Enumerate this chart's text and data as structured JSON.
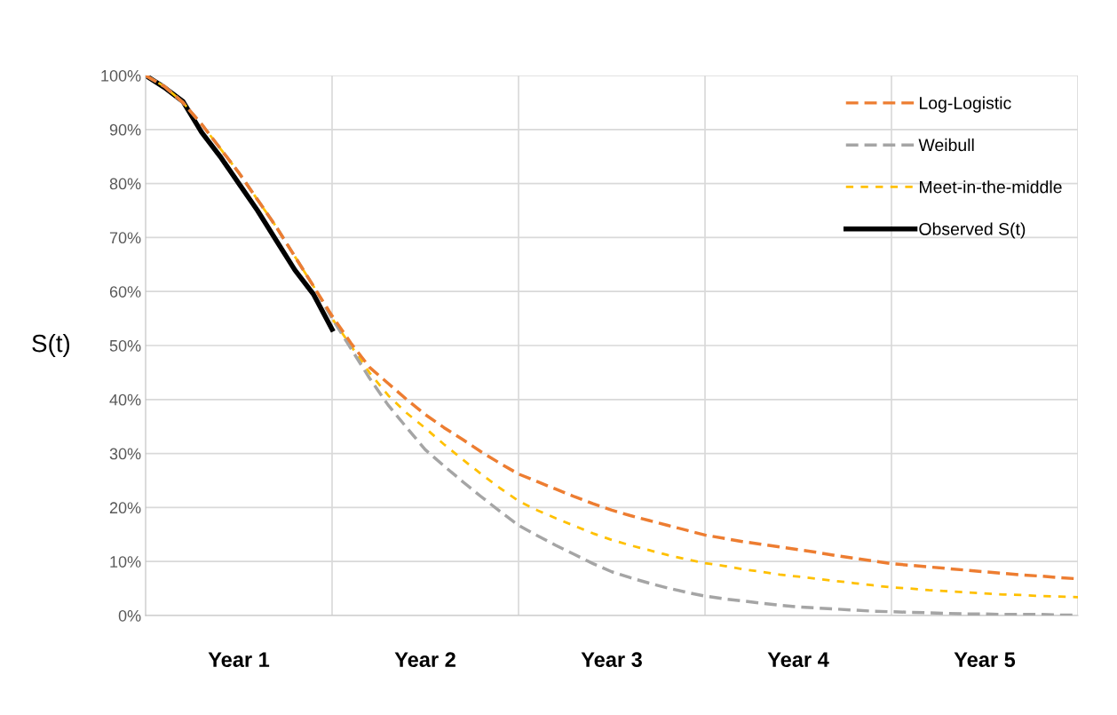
{
  "chart_data": {
    "type": "line",
    "ylabel": "S(t)",
    "categories": [
      null,
      null,
      null,
      null,
      null,
      null,
      null,
      null,
      null,
      null,
      null,
      null,
      null,
      null,
      null,
      null,
      null,
      null,
      null,
      null,
      null,
      null,
      null,
      null,
      null,
      null,
      null,
      null,
      null,
      null,
      null,
      null,
      null,
      null,
      null,
      null,
      null,
      null,
      null,
      null,
      null,
      null,
      null,
      null,
      null,
      null,
      null,
      null,
      null,
      null,
      null
    ],
    "annotations": [
      "Year 1",
      "Year 2",
      "Year 3",
      "Year 4",
      "Year 5"
    ],
    "ylim": [
      0,
      100
    ],
    "yticks": [
      {
        "value": 0,
        "label": "0%"
      },
      {
        "value": 10,
        "label": "10%"
      },
      {
        "value": 20,
        "label": "20%"
      },
      {
        "value": 30,
        "label": "30%"
      },
      {
        "value": 40,
        "label": "40%"
      },
      {
        "value": 50,
        "label": "50%"
      },
      {
        "value": 60,
        "label": "60%"
      },
      {
        "value": 70,
        "label": "70%"
      },
      {
        "value": 80,
        "label": "80%"
      },
      {
        "value": 90,
        "label": "90%"
      },
      {
        "value": 100,
        "label": "100%"
      }
    ],
    "grid": true,
    "legend": "top right",
    "marker": "none",
    "series": [
      {
        "name": "Log-Logistic",
        "color": "#ed7d31",
        "line_style": "dashed",
        "values": [
          100,
          98,
          95,
          91,
          86.5,
          82,
          77,
          72,
          66.5,
          61,
          55.5,
          50.5,
          46,
          43,
          40,
          37.2,
          34.8,
          32.6,
          30.3,
          28.2,
          26.2,
          24.8,
          23.4,
          22,
          20.7,
          19.5,
          18.5,
          17.6,
          16.7,
          15.8,
          14.9,
          14.3,
          13.7,
          13.2,
          12.7,
          12.2,
          11.7,
          11.1,
          10.6,
          10.1,
          9.6,
          9.3,
          9.0,
          8.7,
          8.4,
          8.1,
          7.8,
          7.5,
          7.3,
          7.0,
          6.8
        ]
      },
      {
        "name": "Weibull",
        "color": "#a5a5a5",
        "line_style": "dashed",
        "values": [
          100,
          98,
          95,
          91,
          86.5,
          82,
          77,
          72,
          66.5,
          61,
          55,
          49.5,
          44,
          39,
          34.8,
          30.7,
          27.7,
          24.8,
          22,
          19.3,
          16.7,
          14.8,
          13,
          11.3,
          9.6,
          8.1,
          7,
          6,
          5.1,
          4.3,
          3.6,
          3.1,
          2.7,
          2.3,
          1.9,
          1.6,
          1.4,
          1.2,
          1.0,
          0.8,
          0.7,
          0.6,
          0.5,
          0.4,
          0.3,
          0.3,
          0.2,
          0.2,
          0.2,
          0.1,
          0.1
        ]
      },
      {
        "name": "Meet-in-the-middle",
        "color": "#ffc000",
        "line_style": "dotted",
        "values": [
          100,
          98,
          95,
          91,
          86.5,
          82,
          77,
          72,
          66.5,
          61,
          55,
          50,
          45,
          40.8,
          37.5,
          34.7,
          31.7,
          28.9,
          26.2,
          23.6,
          21.2,
          19.5,
          18,
          16.6,
          15.2,
          14,
          13,
          12.1,
          11.2,
          10.4,
          9.7,
          9.2,
          8.6,
          8.1,
          7.6,
          7.2,
          6.8,
          6.4,
          6,
          5.6,
          5.2,
          5,
          4.7,
          4.5,
          4.3,
          4.1,
          3.9,
          3.8,
          3.6,
          3.5,
          3.4
        ]
      },
      {
        "name": "Observed S(t)",
        "color": "#000000",
        "line_style": "solid",
        "values": [
          100,
          97.8,
          95.2,
          89.5,
          85,
          80,
          75,
          69.5,
          64,
          59.5,
          53,
          null,
          null,
          null,
          null,
          null,
          null,
          null,
          null,
          null,
          null,
          null,
          null,
          null,
          null,
          null,
          null,
          null,
          null,
          null,
          null,
          null,
          null,
          null,
          null,
          null,
          null,
          null,
          null,
          null,
          null,
          null,
          null,
          null,
          null,
          null,
          null,
          null,
          null,
          null,
          null
        ]
      }
    ]
  }
}
